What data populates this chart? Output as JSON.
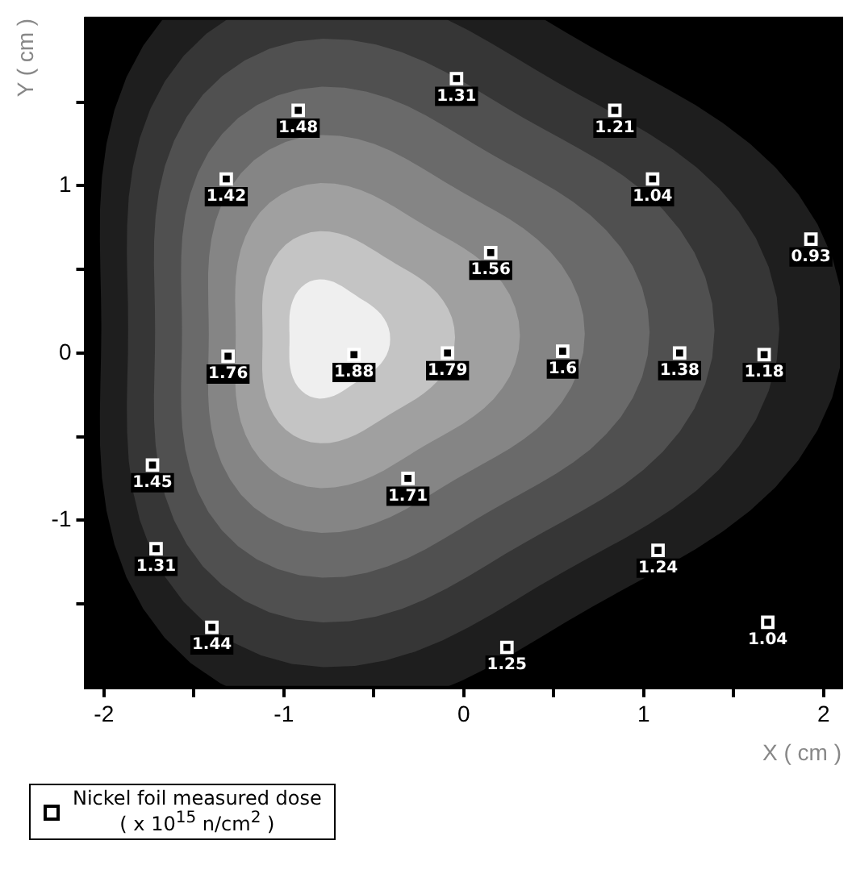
{
  "chart_data": {
    "type": "scatter",
    "xlabel": "X ( cm )",
    "ylabel": "Y ( cm )",
    "xlim": [
      -2.1,
      2.1
    ],
    "ylim": [
      -2,
      2
    ],
    "xticks": [
      -2,
      {
        "value": -1.5,
        "label": null
      },
      -1,
      {
        "value": -0.5,
        "label": null
      },
      0,
      {
        "value": 0.5,
        "label": null
      },
      1,
      {
        "value": 1.5,
        "label": null
      },
      2
    ],
    "yticks": [
      {
        "value": -1.5,
        "label": null
      },
      -1,
      {
        "value": -0.5,
        "label": null
      },
      0,
      {
        "value": 0.5,
        "label": null
      },
      1,
      {
        "value": 1.5,
        "label": null
      }
    ],
    "series": [
      {
        "name": "Nickel foil measured dose\n( x 10$^{15}$ n/cm$^{2}$ )",
        "color": "#ffffff",
        "x": [
          -0.04,
          -0.92,
          0.84,
          -1.32,
          1.05,
          1.93,
          0.15,
          -1.31,
          -0.61,
          -0.09,
          0.55,
          1.2,
          1.67,
          -1.73,
          -0.31,
          -1.71,
          1.08,
          -1.4,
          1.69,
          0.24
        ],
        "values": [
          1.64,
          1.45,
          1.45,
          1.04,
          1.04,
          0.68,
          0.6,
          -0.02,
          -0.01,
          0,
          0.01,
          0,
          -0.01,
          -0.67,
          -0.75,
          -1.17,
          -1.18,
          -1.64,
          -1.61,
          -1.76
        ]
      }
    ],
    "annotations": [
      {
        "text": "1.31",
        "x": -0.04,
        "y": 1.64
      },
      {
        "text": "1.48",
        "x": -0.92,
        "y": 1.45
      },
      {
        "text": "1.21",
        "x": 0.84,
        "y": 1.45
      },
      {
        "text": "1.42",
        "x": -1.32,
        "y": 1.04
      },
      {
        "text": "1.04",
        "x": 1.05,
        "y": 1.04
      },
      {
        "text": "0.93",
        "x": 1.93,
        "y": 0.68
      },
      {
        "text": "1.56",
        "x": 0.15,
        "y": 0.6
      },
      {
        "text": "1.76",
        "x": -1.31,
        "y": -0.02
      },
      {
        "text": "1.88",
        "x": -0.61,
        "y": -0.01
      },
      {
        "text": "1.79",
        "x": -0.09,
        "y": 0
      },
      {
        "text": "1.6",
        "x": 0.55,
        "y": 0.01
      },
      {
        "text": "1.38",
        "x": 1.2,
        "y": 0
      },
      {
        "text": "1.18",
        "x": 1.67,
        "y": -0.01
      },
      {
        "text": "1.45",
        "x": -1.73,
        "y": -0.67
      },
      {
        "text": "1.71",
        "x": -0.31,
        "y": -0.75
      },
      {
        "text": "1.31",
        "x": -1.71,
        "y": -1.17
      },
      {
        "text": "1.24",
        "x": 1.08,
        "y": -1.18
      },
      {
        "text": "1.44",
        "x": -1.4,
        "y": -1.64
      },
      {
        "text": "1.04",
        "x": 1.69,
        "y": -1.61
      },
      {
        "text": "1.25",
        "x": 0.24,
        "y": -1.76
      }
    ],
    "marker": "square",
    "grid": false,
    "legend": "bottom left"
  }
}
